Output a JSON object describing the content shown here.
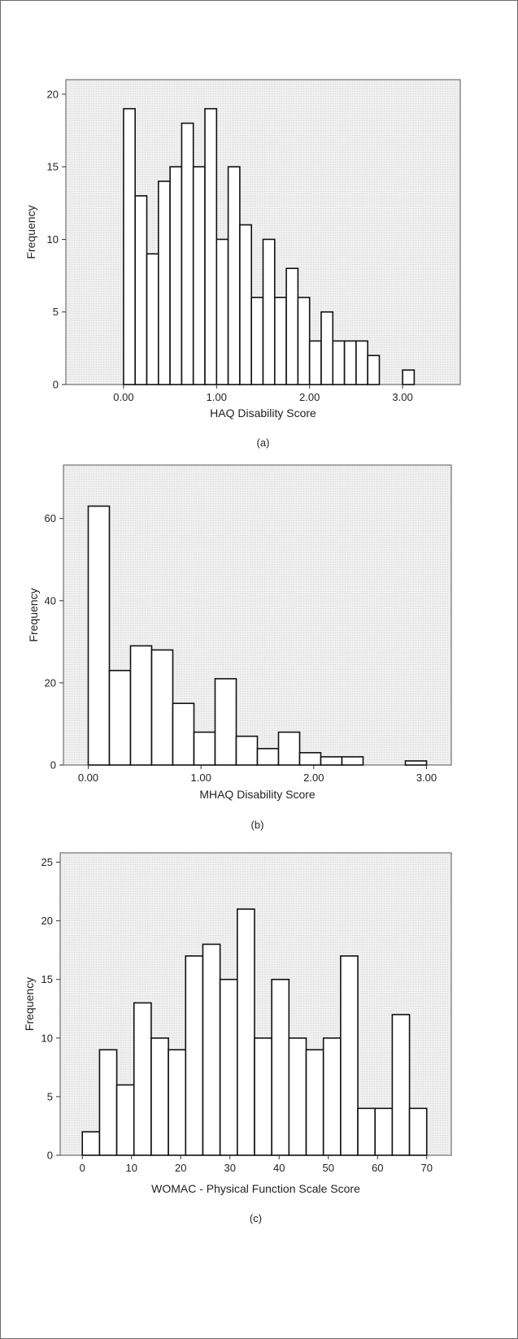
{
  "chart_data": [
    {
      "type": "bar",
      "caption": "(a)",
      "xlabel": "HAQ Disability Score",
      "ylabel": "Frequency",
      "xlim": [
        -0.62,
        3.62
      ],
      "ylim": [
        0,
        21
      ],
      "xticks": [
        {
          "value": 0,
          "label": "0.00"
        },
        {
          "value": 1,
          "label": "1.00"
        },
        {
          "value": 2,
          "label": "2.00"
        },
        {
          "value": 3,
          "label": "3.00"
        }
      ],
      "yticks": [
        {
          "value": 0,
          "label": "0"
        },
        {
          "value": 5,
          "label": "5"
        },
        {
          "value": 10,
          "label": "10"
        },
        {
          "value": 15,
          "label": "15"
        },
        {
          "value": 20,
          "label": "20"
        }
      ],
      "bin_width": 0.125,
      "bins": [
        {
          "x": 0.0,
          "count": 19
        },
        {
          "x": 0.125,
          "count": 13
        },
        {
          "x": 0.25,
          "count": 9
        },
        {
          "x": 0.375,
          "count": 14
        },
        {
          "x": 0.5,
          "count": 15
        },
        {
          "x": 0.625,
          "count": 18
        },
        {
          "x": 0.75,
          "count": 15
        },
        {
          "x": 0.875,
          "count": 19
        },
        {
          "x": 1.0,
          "count": 10
        },
        {
          "x": 1.125,
          "count": 15
        },
        {
          "x": 1.25,
          "count": 11
        },
        {
          "x": 1.375,
          "count": 6
        },
        {
          "x": 1.5,
          "count": 10
        },
        {
          "x": 1.625,
          "count": 6
        },
        {
          "x": 1.75,
          "count": 8
        },
        {
          "x": 1.875,
          "count": 6
        },
        {
          "x": 2.0,
          "count": 3
        },
        {
          "x": 2.125,
          "count": 5
        },
        {
          "x": 2.25,
          "count": 3
        },
        {
          "x": 2.375,
          "count": 3
        },
        {
          "x": 2.5,
          "count": 3
        },
        {
          "x": 2.625,
          "count": 2
        },
        {
          "x": 3.0,
          "count": 1
        }
      ],
      "grid": false
    },
    {
      "type": "bar",
      "caption": "(b)",
      "xlabel": "MHAQ Disability Score",
      "ylabel": "Frequency",
      "xlim": [
        -0.22,
        3.22
      ],
      "ylim": [
        0,
        73
      ],
      "xticks": [
        {
          "value": 0,
          "label": "0.00"
        },
        {
          "value": 1,
          "label": "1.00"
        },
        {
          "value": 2,
          "label": "2.00"
        },
        {
          "value": 3,
          "label": "3.00"
        }
      ],
      "yticks": [
        {
          "value": 0,
          "label": "0"
        },
        {
          "value": 20,
          "label": "20"
        },
        {
          "value": 40,
          "label": "40"
        },
        {
          "value": 60,
          "label": "60"
        }
      ],
      "bin_width": 0.1875,
      "bins": [
        {
          "x": 0.0,
          "count": 63
        },
        {
          "x": 0.1875,
          "count": 23
        },
        {
          "x": 0.375,
          "count": 29
        },
        {
          "x": 0.5625,
          "count": 28
        },
        {
          "x": 0.75,
          "count": 15
        },
        {
          "x": 0.9375,
          "count": 8
        },
        {
          "x": 1.125,
          "count": 21
        },
        {
          "x": 1.3125,
          "count": 7
        },
        {
          "x": 1.5,
          "count": 4
        },
        {
          "x": 1.6875,
          "count": 8
        },
        {
          "x": 1.875,
          "count": 3
        },
        {
          "x": 2.0625,
          "count": 2
        },
        {
          "x": 2.25,
          "count": 2
        },
        {
          "x": 2.8125,
          "count": 1
        }
      ],
      "grid": false
    },
    {
      "type": "bar",
      "caption": "(c)",
      "xlabel": "WOMAC - Physical Function Scale Score",
      "ylabel": "Frequency",
      "xlim": [
        -4.5,
        75
      ],
      "ylim": [
        0,
        25.8
      ],
      "xticks": [
        {
          "value": 0,
          "label": "0"
        },
        {
          "value": 10,
          "label": "10"
        },
        {
          "value": 20,
          "label": "20"
        },
        {
          "value": 30,
          "label": "30"
        },
        {
          "value": 40,
          "label": "40"
        },
        {
          "value": 50,
          "label": "50"
        },
        {
          "value": 60,
          "label": "60"
        },
        {
          "value": 70,
          "label": "70"
        }
      ],
      "yticks": [
        {
          "value": 0,
          "label": "0"
        },
        {
          "value": 5,
          "label": "5"
        },
        {
          "value": 10,
          "label": "10"
        },
        {
          "value": 15,
          "label": "15"
        },
        {
          "value": 20,
          "label": "20"
        },
        {
          "value": 25,
          "label": "25"
        }
      ],
      "bin_width": 3.5,
      "bins": [
        {
          "x": 0.0,
          "count": 2
        },
        {
          "x": 3.5,
          "count": 9
        },
        {
          "x": 7.0,
          "count": 6
        },
        {
          "x": 10.5,
          "count": 13
        },
        {
          "x": 14.0,
          "count": 10
        },
        {
          "x": 17.5,
          "count": 9
        },
        {
          "x": 21.0,
          "count": 17
        },
        {
          "x": 24.5,
          "count": 18
        },
        {
          "x": 28.0,
          "count": 15
        },
        {
          "x": 31.5,
          "count": 21
        },
        {
          "x": 35.0,
          "count": 10
        },
        {
          "x": 38.5,
          "count": 15
        },
        {
          "x": 42.0,
          "count": 10
        },
        {
          "x": 45.5,
          "count": 9
        },
        {
          "x": 49.0,
          "count": 10
        },
        {
          "x": 52.5,
          "count": 17
        },
        {
          "x": 56.0,
          "count": 4
        },
        {
          "x": 59.5,
          "count": 4
        },
        {
          "x": 63.0,
          "count": 12
        },
        {
          "x": 66.5,
          "count": 4
        }
      ],
      "grid": false
    }
  ]
}
